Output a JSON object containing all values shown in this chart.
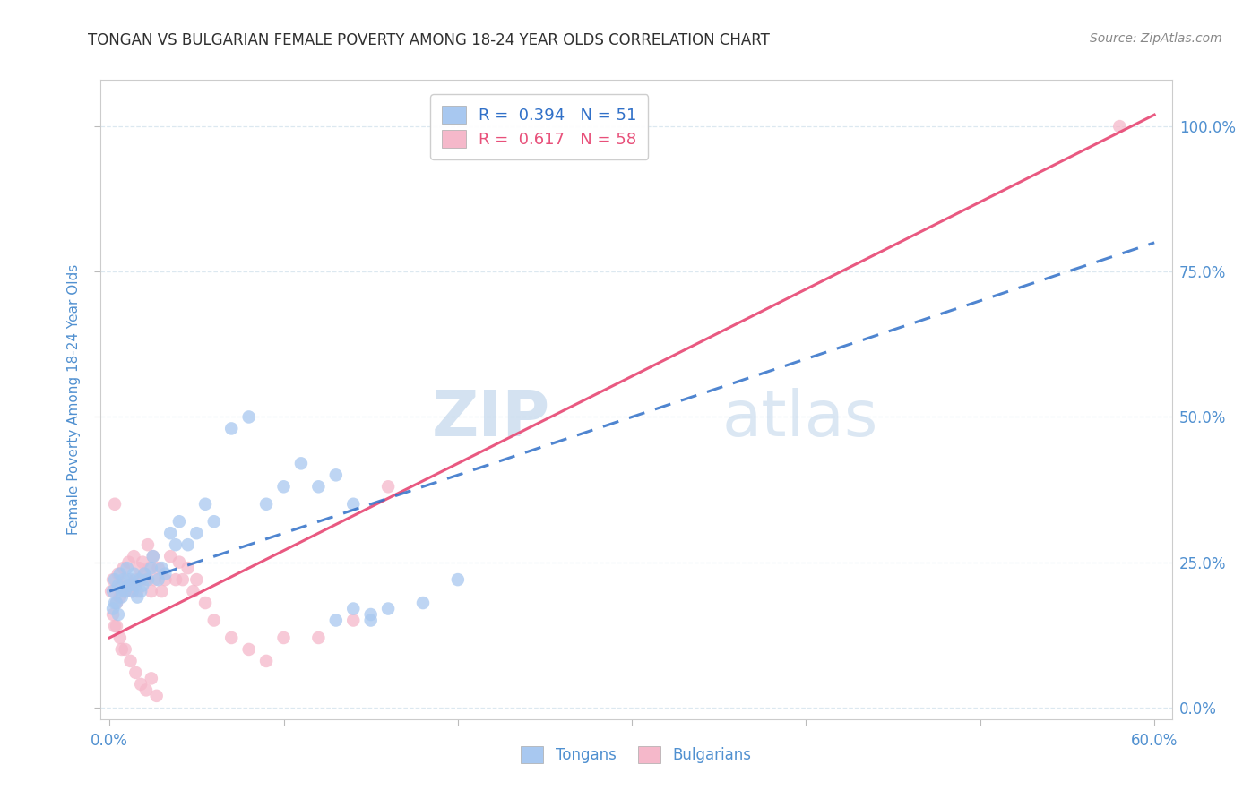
{
  "title": "TONGAN VS BULGARIAN FEMALE POVERTY AMONG 18-24 YEAR OLDS CORRELATION CHART",
  "source": "Source: ZipAtlas.com",
  "xlabel_ticks": [
    "0.0%",
    "",
    "",
    "",
    "",
    "",
    "60.0%"
  ],
  "xlabel_vals": [
    0.0,
    0.1,
    0.2,
    0.3,
    0.4,
    0.5,
    0.6
  ],
  "ylabel": "Female Poverty Among 18-24 Year Olds",
  "ylabel_ticks_right": [
    "0.0%",
    "25.0%",
    "50.0%",
    "75.0%",
    "100.0%"
  ],
  "ylabel_vals": [
    0.0,
    0.25,
    0.5,
    0.75,
    1.0
  ],
  "xlim": [
    -0.005,
    0.61
  ],
  "ylim": [
    -0.02,
    1.08
  ],
  "tongan_R": 0.394,
  "tongan_N": 51,
  "bulgarian_R": 0.617,
  "bulgarian_N": 58,
  "tongan_color": "#a8c8f0",
  "bulgarian_color": "#f5b8ca",
  "tongan_line_color": "#3070c8",
  "bulgarian_line_color": "#e8507a",
  "watermark_zip": "ZIP",
  "watermark_atlas": "atlas",
  "background_color": "#ffffff",
  "grid_color": "#dce8f0",
  "axis_label_color": "#5090d0",
  "title_color": "#303030",
  "source_color": "#888888",
  "tongan_line": {
    "x0": 0.0,
    "x1": 0.6,
    "y0": 0.2,
    "y1": 0.8
  },
  "bulgarian_line": {
    "x0": 0.0,
    "x1": 0.6,
    "y0": 0.12,
    "y1": 1.02
  },
  "tongan_x": [
    0.002,
    0.003,
    0.004,
    0.005,
    0.006,
    0.007,
    0.008,
    0.009,
    0.01,
    0.011,
    0.012,
    0.013,
    0.014,
    0.015,
    0.016,
    0.017,
    0.018,
    0.019,
    0.02,
    0.022,
    0.024,
    0.025,
    0.028,
    0.03,
    0.032,
    0.035,
    0.038,
    0.04,
    0.045,
    0.05,
    0.055,
    0.06,
    0.07,
    0.08,
    0.09,
    0.1,
    0.11,
    0.12,
    0.13,
    0.14,
    0.15,
    0.16,
    0.18,
    0.2,
    0.13,
    0.14,
    0.15,
    0.002,
    0.003,
    0.005,
    0.007
  ],
  "tongan_y": [
    0.2,
    0.22,
    0.18,
    0.21,
    0.23,
    0.19,
    0.22,
    0.2,
    0.24,
    0.21,
    0.22,
    0.2,
    0.23,
    0.21,
    0.19,
    0.22,
    0.2,
    0.21,
    0.23,
    0.22,
    0.24,
    0.26,
    0.22,
    0.24,
    0.23,
    0.3,
    0.28,
    0.32,
    0.28,
    0.3,
    0.35,
    0.32,
    0.48,
    0.5,
    0.35,
    0.38,
    0.42,
    0.38,
    0.4,
    0.35,
    0.15,
    0.17,
    0.18,
    0.22,
    0.15,
    0.17,
    0.16,
    0.17,
    0.18,
    0.16,
    0.2
  ],
  "bulgarian_x": [
    0.001,
    0.002,
    0.003,
    0.004,
    0.005,
    0.006,
    0.007,
    0.008,
    0.009,
    0.01,
    0.011,
    0.012,
    0.013,
    0.014,
    0.015,
    0.016,
    0.017,
    0.018,
    0.019,
    0.02,
    0.021,
    0.022,
    0.023,
    0.024,
    0.025,
    0.026,
    0.028,
    0.03,
    0.032,
    0.035,
    0.038,
    0.04,
    0.042,
    0.045,
    0.048,
    0.05,
    0.055,
    0.06,
    0.07,
    0.08,
    0.09,
    0.1,
    0.12,
    0.14,
    0.16,
    0.003,
    0.006,
    0.009,
    0.012,
    0.015,
    0.018,
    0.021,
    0.024,
    0.027,
    0.002,
    0.004,
    0.007,
    0.58
  ],
  "bulgarian_y": [
    0.2,
    0.22,
    0.35,
    0.18,
    0.23,
    0.19,
    0.21,
    0.24,
    0.2,
    0.22,
    0.25,
    0.21,
    0.2,
    0.26,
    0.22,
    0.2,
    0.24,
    0.22,
    0.25,
    0.23,
    0.22,
    0.28,
    0.24,
    0.2,
    0.26,
    0.22,
    0.24,
    0.2,
    0.22,
    0.26,
    0.22,
    0.25,
    0.22,
    0.24,
    0.2,
    0.22,
    0.18,
    0.15,
    0.12,
    0.1,
    0.08,
    0.12,
    0.12,
    0.15,
    0.38,
    0.14,
    0.12,
    0.1,
    0.08,
    0.06,
    0.04,
    0.03,
    0.05,
    0.02,
    0.16,
    0.14,
    0.1,
    1.0
  ]
}
